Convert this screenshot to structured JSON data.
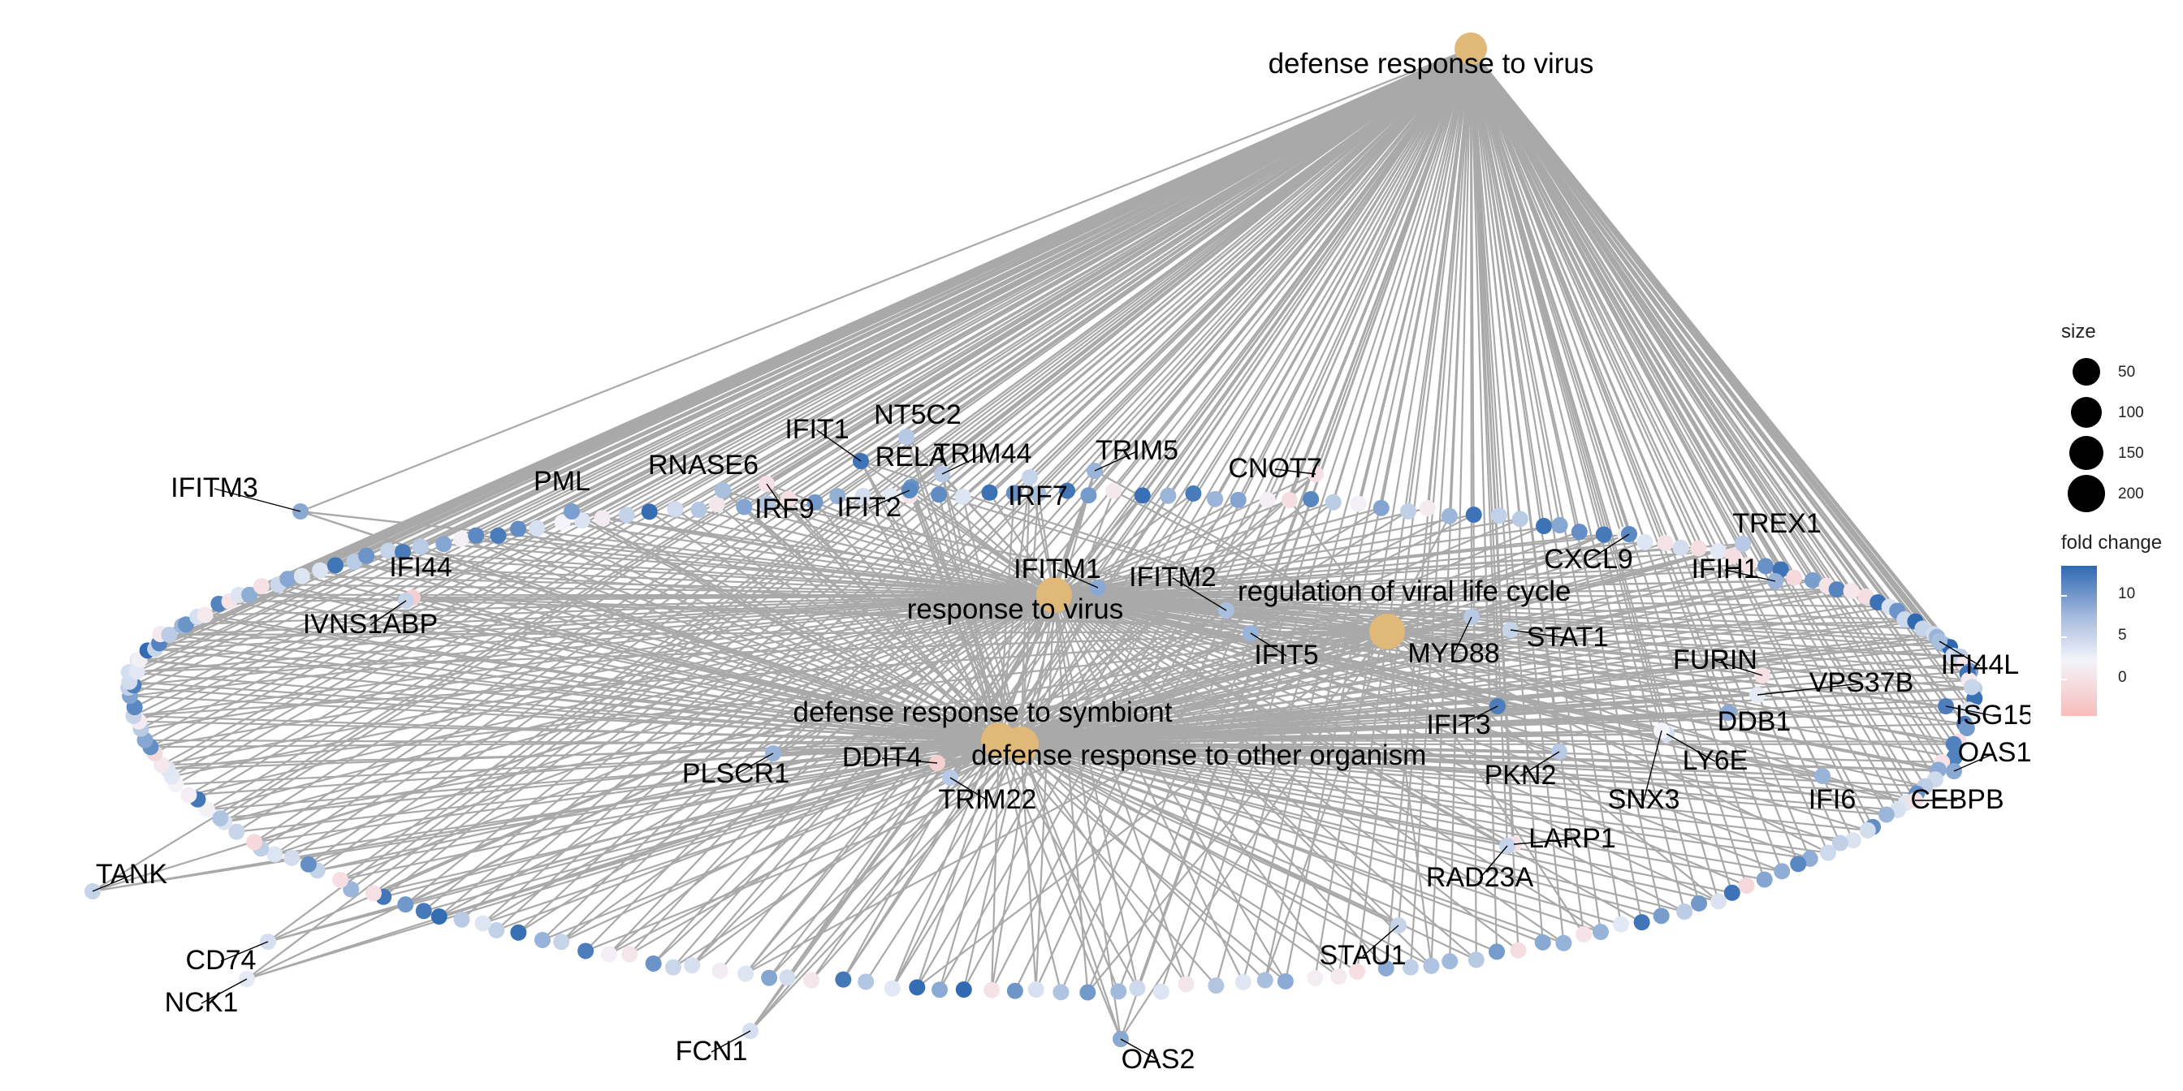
{
  "colors": {
    "category_node": "#e0b878",
    "edge": "#a9a9a9",
    "fc_high": "#2f69b1",
    "fc_mid": "#f3f4fa",
    "fc_low": "#f8bcbc"
  },
  "categories": [
    {
      "id": "virus",
      "label": "defense response to virus"
    },
    {
      "id": "rtv",
      "label": "response to virus"
    },
    {
      "id": "rvlc",
      "label": "regulation of viral life cycle"
    },
    {
      "id": "symb",
      "label": "defense response to symbiont"
    },
    {
      "id": "other",
      "label": "defense response to other organism"
    }
  ],
  "genes": [
    {
      "label": "IFITM3",
      "fc": 7
    },
    {
      "label": "PML",
      "fc": 8
    },
    {
      "label": "RNASE6",
      "fc": 5
    },
    {
      "label": "IRF9",
      "fc": -1
    },
    {
      "label": "IFIT1",
      "fc": 12
    },
    {
      "label": "NT5C2",
      "fc": 4
    },
    {
      "label": "RELA",
      "fc": 9
    },
    {
      "label": "TRIM44",
      "fc": 4
    },
    {
      "label": "TRIM5",
      "fc": 6
    },
    {
      "label": "IFIT2",
      "fc": 10
    },
    {
      "label": "IRF7",
      "fc": 3
    },
    {
      "label": "CNOT7",
      "fc": -1
    },
    {
      "label": "IFI44",
      "fc": -2
    },
    {
      "label": "IVNS1ABP",
      "fc": 3
    },
    {
      "label": "IFITM1",
      "fc": 7
    },
    {
      "label": "IFITM2",
      "fc": 5
    },
    {
      "label": "IFIT5",
      "fc": 6
    },
    {
      "label": "MYD88",
      "fc": 4
    },
    {
      "label": "STAT1",
      "fc": 3
    },
    {
      "label": "CXCL9",
      "fc": 10
    },
    {
      "label": "TREX1",
      "fc": 4
    },
    {
      "label": "IFIH1",
      "fc": 6
    },
    {
      "label": "FURIN",
      "fc": -1
    },
    {
      "label": "IFI44L",
      "fc": 5
    },
    {
      "label": "VPS37B",
      "fc": 1
    },
    {
      "label": "DDB1",
      "fc": 7
    },
    {
      "label": "ISG15",
      "fc": 11
    },
    {
      "label": "OAS1",
      "fc": 7
    },
    {
      "label": "LY6E",
      "fc": 2
    },
    {
      "label": "SNX3",
      "fc": 0
    },
    {
      "label": "IFI6",
      "fc": 6
    },
    {
      "label": "CEBPB",
      "fc": -1
    },
    {
      "label": "IFIT3",
      "fc": 11
    },
    {
      "label": "PKN2",
      "fc": 4
    },
    {
      "label": "LARP1",
      "fc": -1
    },
    {
      "label": "RAD23A",
      "fc": 3
    },
    {
      "label": "PLSCR1",
      "fc": 6
    },
    {
      "label": "DDIT4",
      "fc": -2
    },
    {
      "label": "TRIM22",
      "fc": 4
    },
    {
      "label": "TANK",
      "fc": 3
    },
    {
      "label": "CD74",
      "fc": 2
    },
    {
      "label": "NCK1",
      "fc": 1
    },
    {
      "label": "FCN1",
      "fc": 2
    },
    {
      "label": "STAU1",
      "fc": 3
    },
    {
      "label": "OAS2",
      "fc": 7
    }
  ],
  "legend": {
    "size_title": "size",
    "size_values": [
      50,
      100,
      150,
      200
    ],
    "size_labels": [
      "50",
      "100",
      "150",
      "200"
    ],
    "fc_title": "fold change",
    "fc_range": [
      -4,
      14
    ],
    "fc_ticks": [
      10,
      5,
      0
    ],
    "fc_tick_labels": [
      "10",
      "5",
      "0"
    ]
  }
}
